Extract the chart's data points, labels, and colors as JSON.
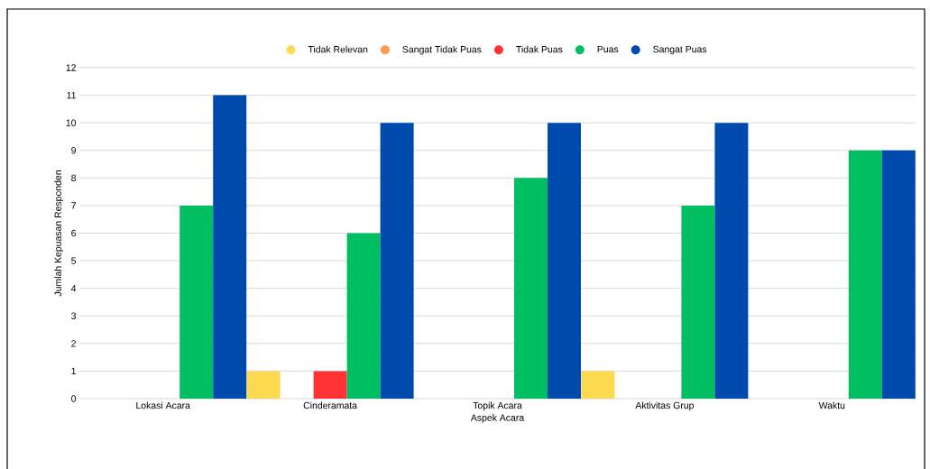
{
  "chart_data": {
    "type": "bar",
    "xlabel": "Aspek Acara",
    "ylabel": "Jumlah Kepuasan Responden",
    "categories": [
      "Lokasi Acara",
      "Cinderamata",
      "Topik Acara",
      "Aktivitas Grup",
      "Waktu"
    ],
    "series": [
      {
        "name": "Tidak Relevan",
        "color": "#fdd94f",
        "values": [
          0,
          1,
          0,
          1,
          0
        ]
      },
      {
        "name": "Sangat Tidak Puas",
        "color": "#ff9a4f",
        "values": [
          0,
          0,
          0,
          0,
          0
        ]
      },
      {
        "name": "Tidak Puas",
        "color": "#ff3333",
        "values": [
          0,
          1,
          0,
          0,
          0
        ]
      },
      {
        "name": "Puas",
        "color": "#00bf63",
        "values": [
          7,
          6,
          8,
          7,
          9
        ]
      },
      {
        "name": "Sangat Puas",
        "color": "#004aad",
        "values": [
          11,
          10,
          10,
          10,
          9
        ]
      }
    ],
    "ylim": [
      0,
      12
    ],
    "yticks": [
      0,
      1,
      2,
      3,
      4,
      5,
      6,
      7,
      8,
      9,
      10,
      11,
      12
    ],
    "grid": "y",
    "legend": "top"
  }
}
